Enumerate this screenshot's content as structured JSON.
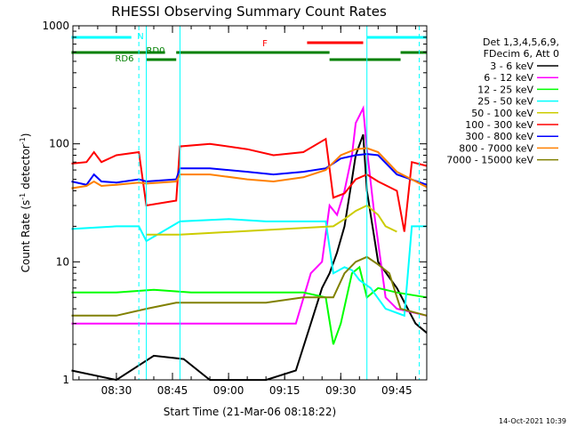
{
  "chart_data": {
    "type": "line",
    "title": "RHESSI Observing Summary Count Rates",
    "xlabel": "Start Time (21-Mar-06 08:18:22)",
    "ylabel": "Count Rate (s⁻¹ detector⁻¹)",
    "ylabel_base": "Count Rate (s",
    "ylabel_sup1": "-1",
    "ylabel_mid": " detector",
    "ylabel_sup2": "-1",
    "ylabel_end": ")",
    "yscale": "log",
    "ylim": [
      1,
      1000
    ],
    "xlim": [
      "08:18:22",
      "09:53:00"
    ],
    "x_ticks": [
      "08:30",
      "08:45",
      "09:00",
      "09:15",
      "09:30",
      "09:45"
    ],
    "y_ticks": [
      "1",
      "10",
      "100",
      "1000"
    ],
    "legend_header": [
      "Det 1,3,4,5,6,9,",
      "FDecim 6, Att 0"
    ],
    "legend_position": "right",
    "timestamp": "14-Oct-2021 10:39",
    "flags": [
      {
        "label": "N",
        "color": "#00ffff",
        "segments": [
          [
            "08:18",
            "08:34"
          ],
          [
            "09:37",
            "09:53"
          ]
        ]
      },
      {
        "label": "F",
        "color": "#ff0000",
        "segments": [
          [
            "09:21",
            "09:36"
          ]
        ]
      },
      {
        "label": "RD0",
        "color": "#008000",
        "segments": [
          [
            "08:18",
            "08:43"
          ],
          [
            "08:46",
            "09:27"
          ],
          [
            "09:46",
            "09:53"
          ]
        ]
      },
      {
        "label": "RD6",
        "color": "#008000",
        "segments": [
          [
            "08:38",
            "08:46"
          ],
          [
            "09:27",
            "09:46"
          ]
        ]
      }
    ],
    "vertical_markers": {
      "cyan_dashed": [
        "08:36",
        "09:51"
      ],
      "cyan_solid": [
        "08:38",
        "08:47",
        "09:37"
      ]
    },
    "series": [
      {
        "name": "3 - 6 keV",
        "color": "#000000",
        "points": [
          [
            "08:18",
            1.2
          ],
          [
            "08:30",
            0.8
          ],
          [
            "08:40",
            1.6
          ],
          [
            "08:48",
            1.5
          ],
          [
            "08:55",
            0.9
          ],
          [
            "09:10",
            0.9
          ],
          [
            "09:18",
            1.2
          ],
          [
            "09:22",
            3
          ],
          [
            "09:25",
            6
          ],
          [
            "09:27",
            8
          ],
          [
            "09:29",
            12
          ],
          [
            "09:31",
            20
          ],
          [
            "09:33",
            50
          ],
          [
            "09:34",
            80
          ],
          [
            "09:36",
            120
          ],
          [
            "09:37",
            40
          ],
          [
            "09:40",
            10
          ],
          [
            "09:45",
            6
          ],
          [
            "09:50",
            3
          ],
          [
            "09:53",
            2.5
          ]
        ]
      },
      {
        "name": "6 - 12 keV",
        "color": "#ff00ff",
        "points": [
          [
            "08:18",
            3
          ],
          [
            "08:30",
            3
          ],
          [
            "08:40",
            3
          ],
          [
            "08:50",
            3
          ],
          [
            "09:00",
            3
          ],
          [
            "09:10",
            3
          ],
          [
            "09:18",
            3
          ],
          [
            "09:22",
            8
          ],
          [
            "09:25",
            10
          ],
          [
            "09:27",
            30
          ],
          [
            "09:29",
            25
          ],
          [
            "09:31",
            40
          ],
          [
            "09:33",
            80
          ],
          [
            "09:34",
            150
          ],
          [
            "09:36",
            200
          ],
          [
            "09:37",
            90
          ],
          [
            "09:39",
            25
          ],
          [
            "09:42",
            5
          ],
          [
            "09:45",
            4
          ],
          [
            "09:53",
            3.5
          ]
        ]
      },
      {
        "name": "12 - 25 keV",
        "color": "#00ff00",
        "points": [
          [
            "08:18",
            5.5
          ],
          [
            "08:30",
            5.5
          ],
          [
            "08:40",
            5.8
          ],
          [
            "08:50",
            5.5
          ],
          [
            "09:00",
            5.5
          ],
          [
            "09:10",
            5.5
          ],
          [
            "09:20",
            5.5
          ],
          [
            "09:26",
            5
          ],
          [
            "09:28",
            2
          ],
          [
            "09:30",
            3
          ],
          [
            "09:33",
            8
          ],
          [
            "09:35",
            9
          ],
          [
            "09:37",
            5
          ],
          [
            "09:40",
            6
          ],
          [
            "09:45",
            5.5
          ],
          [
            "09:53",
            5
          ]
        ]
      },
      {
        "name": "25 - 50 keV",
        "color": "#00ffff",
        "points": [
          [
            "08:18",
            19
          ],
          [
            "08:30",
            20
          ],
          [
            "08:36",
            20
          ],
          [
            "08:38",
            15
          ],
          [
            "08:47",
            22
          ],
          [
            "09:00",
            23
          ],
          [
            "09:10",
            22
          ],
          [
            "09:20",
            22
          ],
          [
            "09:26",
            22
          ],
          [
            "09:28",
            8
          ],
          [
            "09:31",
            9
          ],
          [
            "09:33",
            8.5
          ],
          [
            "09:35",
            7
          ],
          [
            "09:38",
            6
          ],
          [
            "09:42",
            4
          ],
          [
            "09:47",
            3.5
          ],
          [
            "09:49",
            20
          ],
          [
            "09:53",
            20
          ]
        ]
      },
      {
        "name": "50 - 100 keV",
        "color": "#cccc00",
        "points": [
          [
            "08:38",
            17
          ],
          [
            "08:47",
            17
          ],
          [
            "09:28",
            20
          ],
          [
            "09:31",
            23
          ],
          [
            "09:34",
            27
          ],
          [
            "09:37",
            30
          ],
          [
            "09:40",
            25
          ],
          [
            "09:42",
            20
          ],
          [
            "09:45",
            18
          ]
        ]
      },
      {
        "name": "100 - 300 keV",
        "color": "#ff0000",
        "points": [
          [
            "08:18",
            68
          ],
          [
            "08:22",
            70
          ],
          [
            "08:24",
            85
          ],
          [
            "08:26",
            70
          ],
          [
            "08:30",
            80
          ],
          [
            "08:36",
            85
          ],
          [
            "08:38",
            30
          ],
          [
            "08:46",
            33
          ],
          [
            "08:47",
            95
          ],
          [
            "08:55",
            100
          ],
          [
            "09:05",
            90
          ],
          [
            "09:12",
            80
          ],
          [
            "09:20",
            85
          ],
          [
            "09:26",
            110
          ],
          [
            "09:28",
            35
          ],
          [
            "09:31",
            38
          ],
          [
            "09:34",
            50
          ],
          [
            "09:37",
            55
          ],
          [
            "09:40",
            48
          ],
          [
            "09:45",
            40
          ],
          [
            "09:47",
            18
          ],
          [
            "09:49",
            70
          ],
          [
            "09:53",
            65
          ]
        ]
      },
      {
        "name": "300 - 800 keV",
        "color": "#0000ff",
        "points": [
          [
            "08:18",
            48
          ],
          [
            "08:22",
            45
          ],
          [
            "08:24",
            55
          ],
          [
            "08:26",
            48
          ],
          [
            "08:30",
            47
          ],
          [
            "08:36",
            50
          ],
          [
            "08:38",
            48
          ],
          [
            "08:46",
            50
          ],
          [
            "08:47",
            62
          ],
          [
            "08:55",
            62
          ],
          [
            "09:05",
            58
          ],
          [
            "09:12",
            55
          ],
          [
            "09:20",
            58
          ],
          [
            "09:26",
            62
          ],
          [
            "09:30",
            75
          ],
          [
            "09:34",
            80
          ],
          [
            "09:37",
            82
          ],
          [
            "09:40",
            80
          ],
          [
            "09:45",
            55
          ],
          [
            "09:53",
            45
          ]
        ]
      },
      {
        "name": "800 - 7000 keV",
        "color": "#ff8000",
        "points": [
          [
            "08:18",
            42
          ],
          [
            "08:22",
            44
          ],
          [
            "08:24",
            48
          ],
          [
            "08:26",
            44
          ],
          [
            "08:30",
            45
          ],
          [
            "08:36",
            47
          ],
          [
            "08:38",
            46
          ],
          [
            "08:46",
            48
          ],
          [
            "08:47",
            55
          ],
          [
            "08:55",
            55
          ],
          [
            "09:05",
            50
          ],
          [
            "09:12",
            48
          ],
          [
            "09:20",
            52
          ],
          [
            "09:26",
            60
          ],
          [
            "09:30",
            80
          ],
          [
            "09:34",
            90
          ],
          [
            "09:37",
            92
          ],
          [
            "09:40",
            85
          ],
          [
            "09:45",
            58
          ],
          [
            "09:53",
            43
          ]
        ]
      },
      {
        "name": "7000 - 15000 keV",
        "color": "#808000",
        "points": [
          [
            "08:18",
            3.5
          ],
          [
            "08:30",
            3.5
          ],
          [
            "08:38",
            4
          ],
          [
            "08:46",
            4.5
          ],
          [
            "09:00",
            4.5
          ],
          [
            "09:10",
            4.5
          ],
          [
            "09:20",
            5
          ],
          [
            "09:26",
            5
          ],
          [
            "09:28",
            5
          ],
          [
            "09:31",
            8
          ],
          [
            "09:34",
            10
          ],
          [
            "09:37",
            11
          ],
          [
            "09:40",
            9.5
          ],
          [
            "09:43",
            8
          ],
          [
            "09:46",
            4
          ],
          [
            "09:53",
            3.5
          ]
        ]
      }
    ]
  }
}
